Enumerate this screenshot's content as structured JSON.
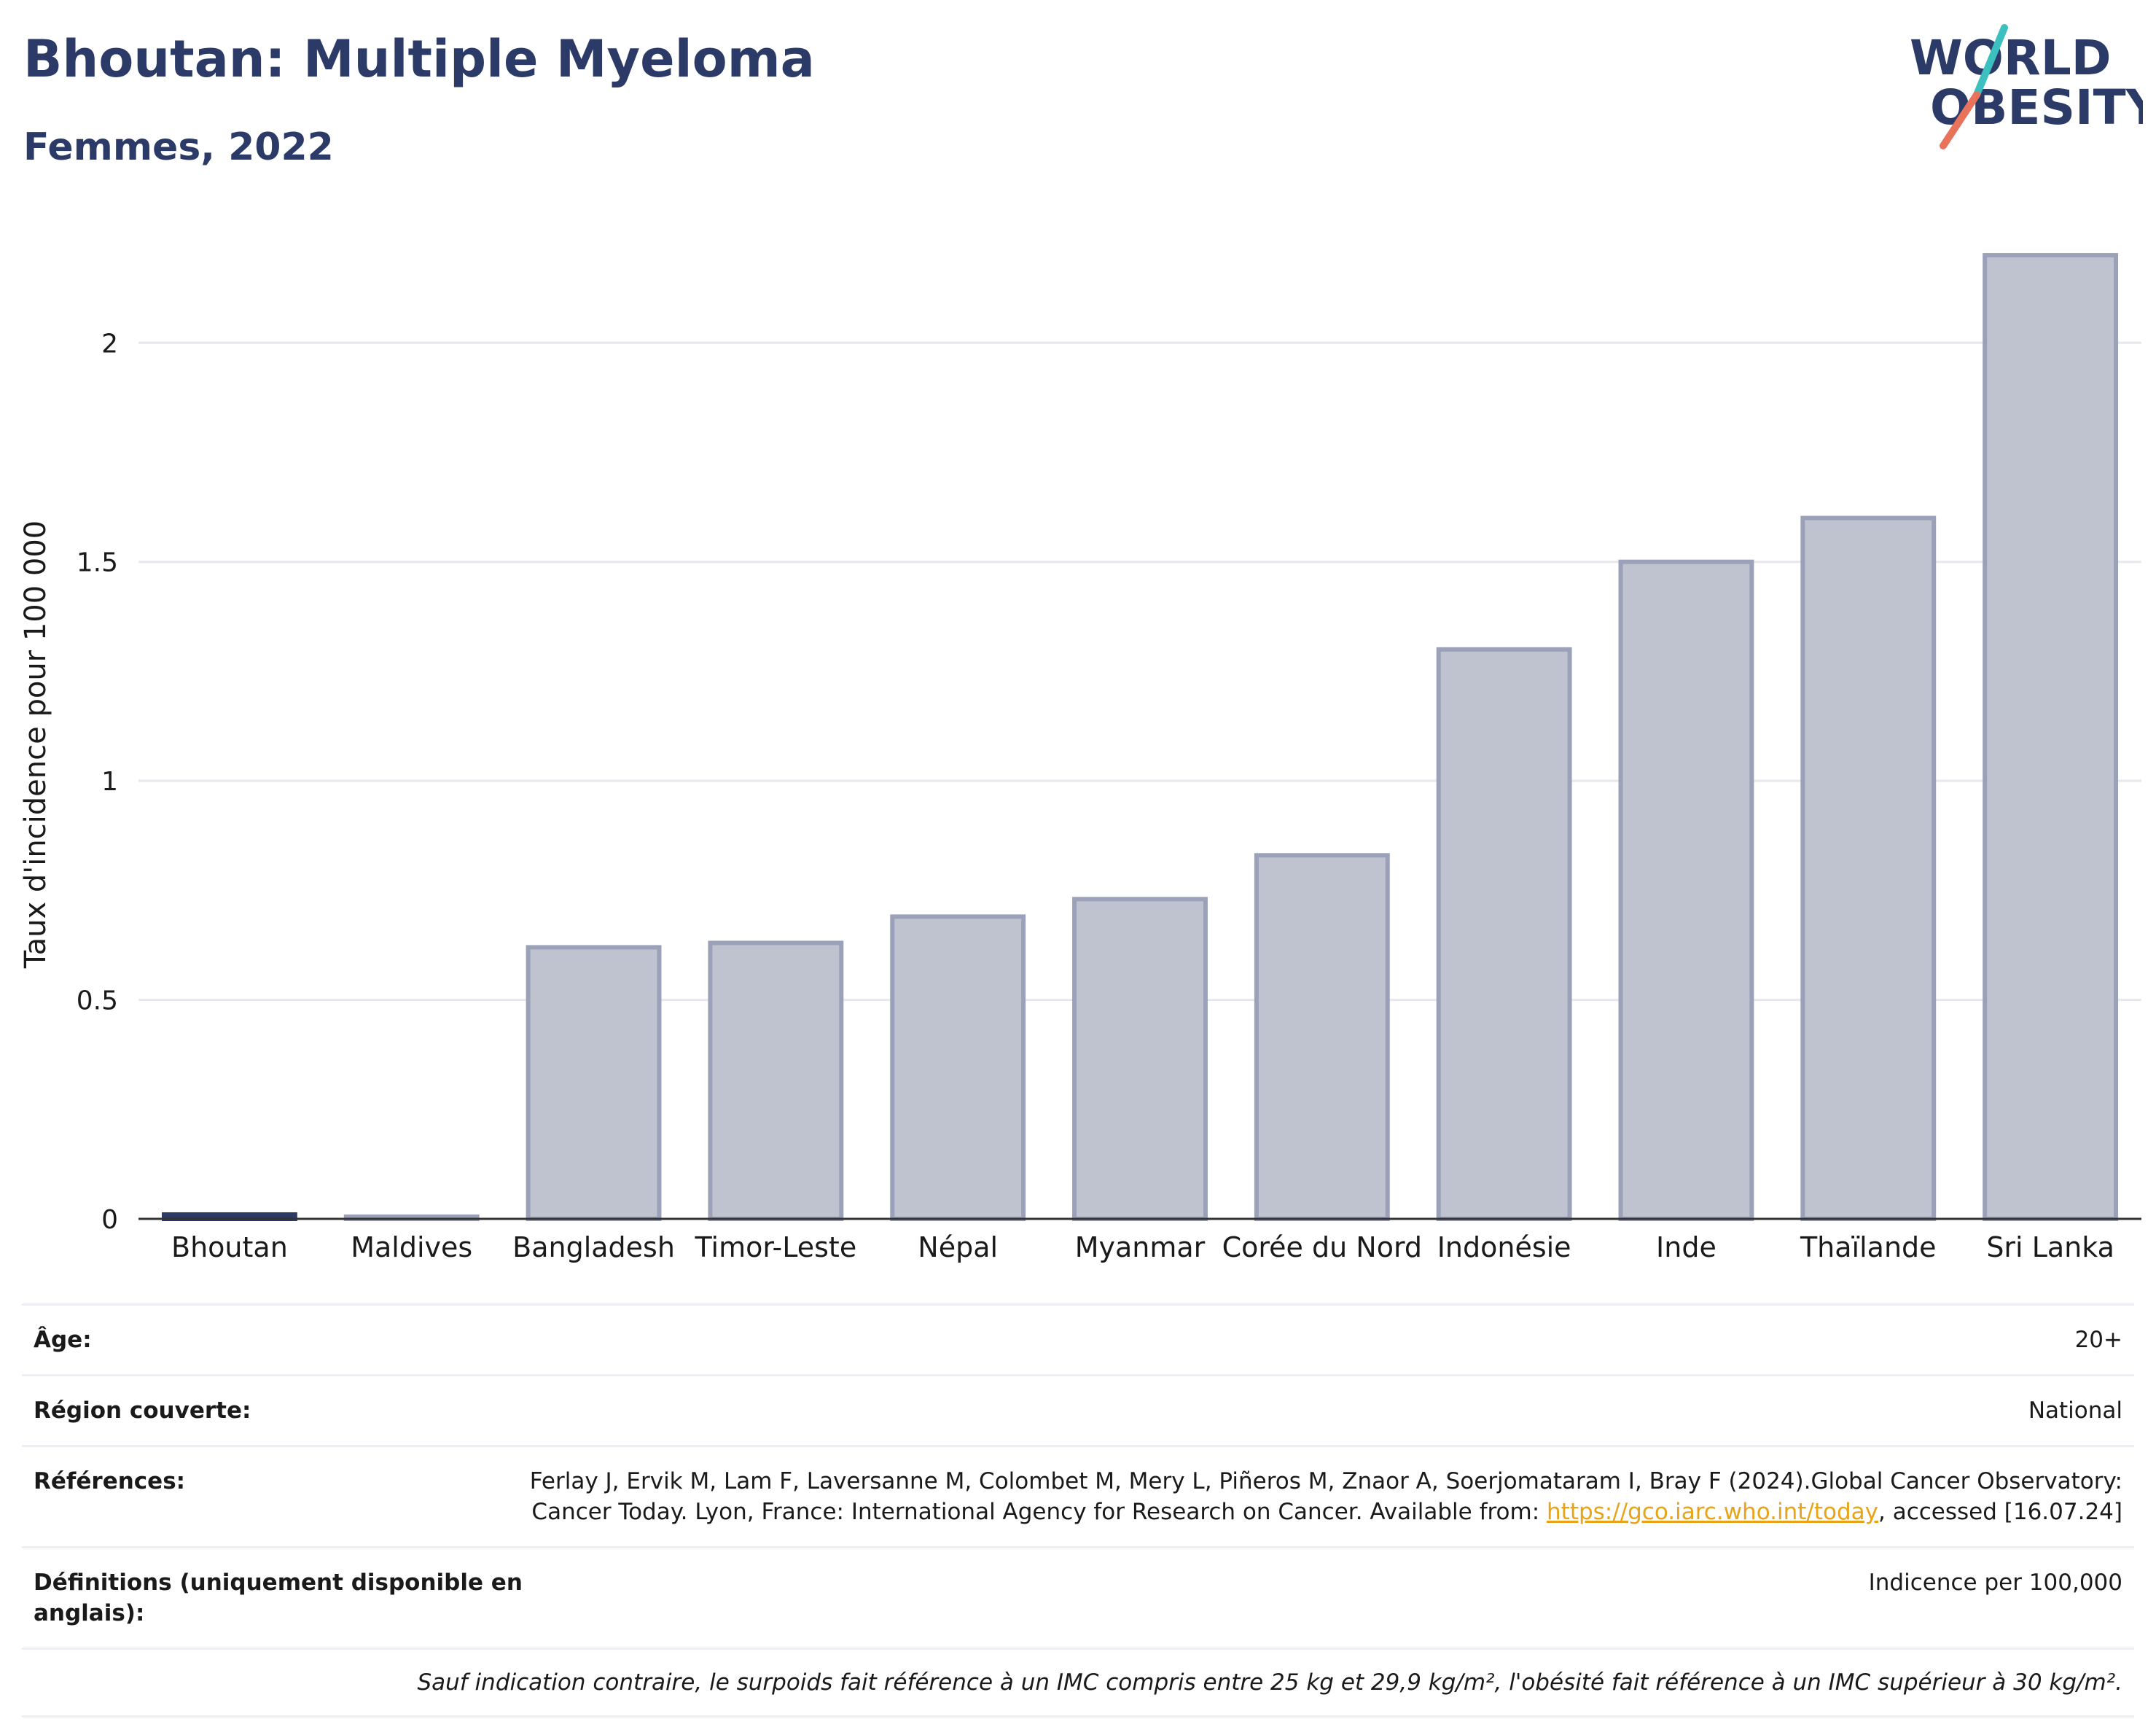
{
  "header": {
    "title": "Bhoutan: Multiple Myeloma",
    "subtitle": "Femmes, 2022"
  },
  "logo": {
    "line1": "WORLD",
    "line2": "OBESITY",
    "colors": {
      "text": "#2b3a67",
      "slash_top": "#3bbfbf",
      "slash_bottom": "#e8735a"
    }
  },
  "chart_data": {
    "type": "bar",
    "title": "",
    "xlabel": "",
    "ylabel": "Taux d'incidence pour 100 000",
    "categories": [
      "Bhoutan",
      "Maldives",
      "Bangladesh",
      "Timor-Leste",
      "Népal",
      "Myanmar",
      "Corée du Nord",
      "Indonésie",
      "Inde",
      "Thaïlande",
      "Sri Lanka"
    ],
    "values": [
      0.01,
      0.005,
      0.62,
      0.63,
      0.69,
      0.73,
      0.83,
      1.3,
      1.5,
      1.6,
      2.2
    ],
    "highlight": "Bhoutan",
    "ylim": [
      0,
      2.3
    ],
    "yticks": [
      0,
      0.5,
      1,
      1.5,
      2
    ],
    "ytick_labels": [
      "0",
      "0.5",
      "1",
      "1.5",
      "2"
    ],
    "grid": true,
    "colors": {
      "bar": "#bfc3d0",
      "bar_border": "#9aa1b8",
      "highlight": "#2b3a67",
      "grid": "#e6e8ee",
      "axis": "#333333"
    }
  },
  "meta": {
    "rows": [
      {
        "label": "Âge:",
        "value": "20+"
      },
      {
        "label": "Région couverte:",
        "value": "National"
      },
      {
        "label": "Références:",
        "value_before": "Ferlay J, Ervik M, Lam F, Laversanne M, Colombet M, Mery L, Piñeros M, Znaor A, Soerjomataram I, Bray F (2024).Global Cancer Observatory: Cancer Today. Lyon, France: International Agency for Research on Cancer. Available from: ",
        "link": "https://gco.iarc.who.int/today",
        "value_after": ", accessed [16.07.24]"
      },
      {
        "label": "Définitions (uniquement disponible en anglais):",
        "value": "Indicence per 100,000"
      }
    ],
    "note": "Sauf indication contraire, le surpoids fait référence à un IMC compris entre 25 kg et 29,9 kg/m², l'obésité fait référence à un IMC supérieur à 30 kg/m²."
  }
}
